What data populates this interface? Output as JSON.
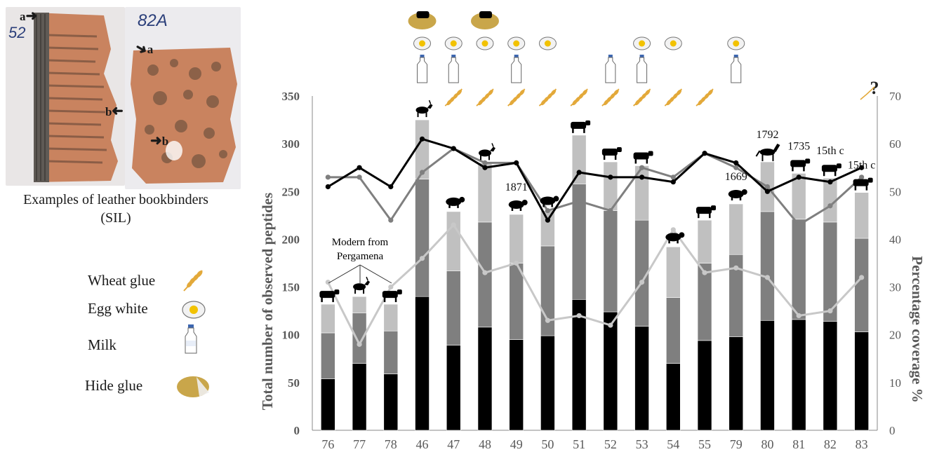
{
  "photo_panel": {
    "sample_a_label": "52",
    "sample_b_label": "82A",
    "arrow_labels": [
      "a",
      "b",
      "a",
      "b"
    ],
    "caption_line1": "Examples of leather bookbinders",
    "caption_line2": "(SIL)"
  },
  "legend": {
    "items": [
      {
        "label": "Wheat glue",
        "icon": "wheat-icon"
      },
      {
        "label": "Egg white",
        "icon": "egg-icon"
      },
      {
        "label": "Milk",
        "icon": "milk-bottle-icon"
      },
      {
        "label": "Hide glue",
        "icon": "hide-glue-icon"
      }
    ]
  },
  "colors": {
    "black": "#000000",
    "dark_gray": "#7f7f7f",
    "light_gray": "#c0c0c0",
    "line_black": "#000000",
    "line_dark": "#7f7f7f",
    "line_light": "#c8c8c8",
    "axis_text": "#595959",
    "leather": "#c9835f",
    "hide_glue": "#c9a64a",
    "wheat": "#e3a93a"
  },
  "annotations": {
    "modern_line1": "Modern from",
    "modern_line2": "Pergamena",
    "unknown_mark": "?"
  },
  "chart_data": {
    "type": "bar",
    "title": "",
    "ylabel": "Total number of observed peptides",
    "y2label": "Percentage coverage %",
    "ylim": [
      0,
      350
    ],
    "y2lim": [
      0,
      70
    ],
    "yticks": [
      0,
      50,
      100,
      150,
      200,
      250,
      300,
      350
    ],
    "y2ticks": [
      0,
      10,
      20,
      30,
      40,
      50,
      60,
      70
    ],
    "categories": [
      "76",
      "77",
      "78",
      "46",
      "47",
      "48",
      "49",
      "50",
      "51",
      "52",
      "53",
      "54",
      "55",
      "79",
      "80",
      "81",
      "82",
      "83"
    ],
    "stacked_series": [
      {
        "values": [
          54,
          70,
          59,
          140,
          89,
          108,
          95,
          99,
          137,
          124,
          109,
          70,
          94,
          98,
          115,
          116,
          114,
          103
        ]
      },
      {
        "values": [
          48,
          53,
          45,
          123,
          78,
          110,
          80,
          94,
          121,
          106,
          111,
          69,
          81,
          86,
          114,
          105,
          104,
          98
        ]
      },
      {
        "values": [
          30,
          17,
          28,
          62,
          62,
          62,
          51,
          37,
          51,
          51,
          57,
          53,
          45,
          53,
          52,
          48,
          46,
          48
        ]
      }
    ],
    "line_series": [
      {
        "axis": "right",
        "values": [
          51,
          55,
          51,
          61,
          59,
          55,
          56,
          44,
          54,
          53,
          53,
          52,
          58,
          56,
          50,
          53,
          52,
          55
        ]
      },
      {
        "axis": "right",
        "values": [
          53,
          53,
          44,
          54,
          59,
          56,
          56,
          46,
          48,
          46,
          55,
          53,
          58,
          55,
          51,
          43,
          47,
          53
        ]
      },
      {
        "axis": "right",
        "values": [
          31,
          18,
          30,
          36,
          43,
          33,
          35,
          23,
          24,
          22,
          31,
          42,
          33,
          34,
          32,
          24,
          25,
          32
        ]
      }
    ],
    "bar_animals": [
      "cow",
      "goat",
      "cow",
      "goat",
      "sheep",
      "goat",
      "sheep",
      "sheep",
      "cow",
      "cow",
      "cow",
      "sheep",
      "cow",
      "sheep",
      "horse",
      "cow",
      "cow",
      "cow"
    ],
    "year_labels": [
      {
        "index": 6,
        "text": "1871"
      },
      {
        "index": 13,
        "text": "1669"
      },
      {
        "index": 14,
        "text": "1792"
      },
      {
        "index": 15,
        "text": "1735"
      },
      {
        "index": 16,
        "text": "15th c"
      },
      {
        "index": 17,
        "text": "15th c"
      }
    ],
    "treatments": {
      "hide_glue": [
        3,
        5
      ],
      "egg_white": [
        3,
        4,
        5,
        6,
        7,
        10,
        11,
        13
      ],
      "milk": [
        3,
        4,
        6,
        9,
        10,
        13
      ],
      "wheat_glue": [
        4,
        5,
        6,
        7,
        8,
        9,
        10,
        11,
        12
      ]
    }
  }
}
